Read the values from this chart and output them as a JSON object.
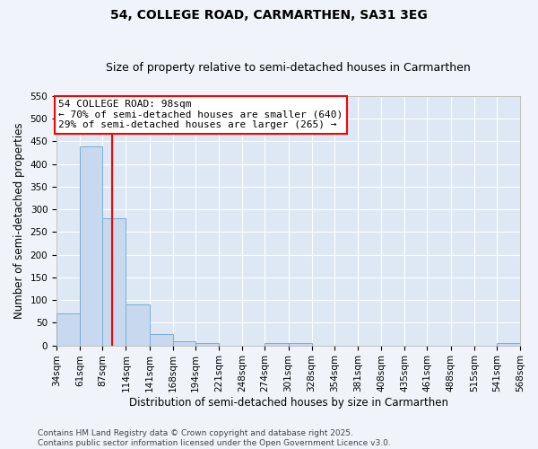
{
  "title": "54, COLLEGE ROAD, CARMARTHEN, SA31 3EG",
  "subtitle": "Size of property relative to semi-detached houses in Carmarthen",
  "xlabel": "Distribution of semi-detached houses by size in Carmarthen",
  "ylabel": "Number of semi-detached properties",
  "bar_color": "#c8d8ee",
  "bar_edge_color": "#7aaed4",
  "background_color": "#dde8f4",
  "plot_bg_color": "#dde8f4",
  "grid_color": "#ffffff",
  "property_line_x": 98,
  "property_line_color": "red",
  "annotation_text": "54 COLLEGE ROAD: 98sqm\n← 70% of semi-detached houses are smaller (640)\n29% of semi-detached houses are larger (265) →",
  "annotation_box_color": "white",
  "annotation_box_edge": "red",
  "bin_edges": [
    34,
    61,
    87,
    114,
    141,
    168,
    194,
    221,
    248,
    274,
    301,
    328,
    354,
    381,
    408,
    435,
    461,
    488,
    515,
    541,
    568
  ],
  "bin_counts": [
    70,
    438,
    280,
    90,
    25,
    10,
    5,
    0,
    0,
    5,
    5,
    0,
    0,
    0,
    0,
    0,
    0,
    0,
    0,
    5
  ],
  "ylim": [
    0,
    550
  ],
  "yticks": [
    0,
    50,
    100,
    150,
    200,
    250,
    300,
    350,
    400,
    450,
    500,
    550
  ],
  "footer": "Contains HM Land Registry data © Crown copyright and database right 2025.\nContains public sector information licensed under the Open Government Licence v3.0.",
  "title_fontsize": 10,
  "subtitle_fontsize": 9,
  "axis_label_fontsize": 8.5,
  "tick_fontsize": 7.5,
  "footer_fontsize": 6.5,
  "annotation_fontsize": 8
}
